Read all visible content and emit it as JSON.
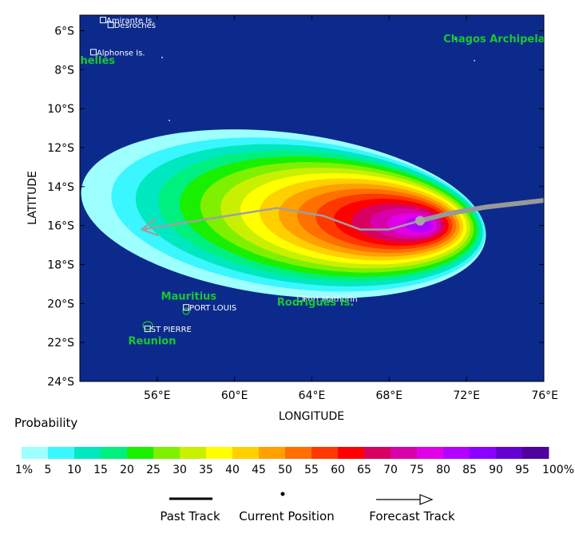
{
  "map": {
    "xlabel": "LONGITUDE",
    "ylabel": "LATITUDE",
    "lon_range": [
      52,
      76
    ],
    "lat_range": [
      -24,
      -5.2
    ],
    "x_ticks": [
      {
        "lon": 56,
        "label": "56°E"
      },
      {
        "lon": 60,
        "label": "60°E"
      },
      {
        "lon": 64,
        "label": "64°E"
      },
      {
        "lon": 68,
        "label": "68°E"
      },
      {
        "lon": 72,
        "label": "72°E"
      },
      {
        "lon": 76,
        "label": "76°E"
      }
    ],
    "y_ticks": [
      {
        "lat": -6,
        "label": "6°S"
      },
      {
        "lat": -8,
        "label": "8°S"
      },
      {
        "lat": -10,
        "label": "10°S"
      },
      {
        "lat": -12,
        "label": "12°S"
      },
      {
        "lat": -14,
        "label": "14°S"
      },
      {
        "lat": -16,
        "label": "16°S"
      },
      {
        "lat": -18,
        "label": "18°S"
      },
      {
        "lat": -20,
        "label": "20°S"
      },
      {
        "lat": -22,
        "label": "22°S"
      },
      {
        "lat": -24,
        "label": "24°S"
      }
    ],
    "ocean_color": "#0c2a8c",
    "island_labels": [
      {
        "text": "Amirante Is.",
        "lon": 53.2,
        "lat": -5.45
      },
      {
        "text": "Desroches",
        "lon": 53.6,
        "lat": -5.7
      },
      {
        "text": "Alphonse Is.",
        "lon": 52.7,
        "lat": -7.1
      },
      {
        "text": "PORT LOUIS",
        "lon": 57.5,
        "lat": -20.2
      },
      {
        "text": "Port Mathurin",
        "lon": 63.4,
        "lat": -19.75
      },
      {
        "text": "ST PIERRE",
        "lon": 55.5,
        "lat": -21.3
      }
    ],
    "region_labels": [
      {
        "text": "Chagos Archipelago",
        "lon": 70.8,
        "lat": -6.6
      },
      {
        "text": "Seychelles",
        "lon": 52.2,
        "lat": -7.7
      },
      {
        "text": "Mauritius",
        "lon": 56.2,
        "lat": -19.8
      },
      {
        "text": "Rodrigues Is.",
        "lon": 62.2,
        "lat": -20.1
      },
      {
        "text": "Reunion",
        "lon": 54.5,
        "lat": -22.1
      }
    ],
    "past_track": [
      [
        76.5,
        -14.65
      ],
      [
        73,
        -15.05
      ],
      [
        71,
        -15.4
      ],
      [
        69.6,
        -15.75
      ]
    ],
    "current_position": [
      69.6,
      -15.75
    ],
    "forecast_track": [
      [
        69.6,
        -15.75
      ],
      [
        68,
        -16.2
      ],
      [
        66.5,
        -16.2
      ],
      [
        64.6,
        -15.5
      ],
      [
        62.2,
        -15.1
      ],
      [
        55.2,
        -16.2
      ]
    ],
    "probability_field": {
      "center": [
        62.6,
        -15.9
      ],
      "contours": [
        {
          "pct": 1,
          "color": "#9effff"
        },
        {
          "pct": 5,
          "color": "#3af6ff"
        },
        {
          "pct": 10,
          "color": "#00e8c0"
        },
        {
          "pct": 15,
          "color": "#00f080"
        },
        {
          "pct": 20,
          "color": "#19f000"
        },
        {
          "pct": 25,
          "color": "#7ef000"
        },
        {
          "pct": 30,
          "color": "#c8f000"
        },
        {
          "pct": 35,
          "color": "#ffff00"
        },
        {
          "pct": 40,
          "color": "#ffd000"
        },
        {
          "pct": 45,
          "color": "#ffa000"
        },
        {
          "pct": 50,
          "color": "#ff7000"
        },
        {
          "pct": 55,
          "color": "#ff3800"
        },
        {
          "pct": 60,
          "color": "#ff0000"
        },
        {
          "pct": 65,
          "color": "#d80060"
        },
        {
          "pct": 70,
          "color": "#d800a8"
        },
        {
          "pct": 75,
          "color": "#e000e8"
        },
        {
          "pct": 80,
          "color": "#b400ff"
        }
      ]
    }
  },
  "legend": {
    "title": "Probability",
    "colors": [
      "#9effff",
      "#3af6ff",
      "#00e8c0",
      "#00f080",
      "#19f000",
      "#7ef000",
      "#c8f000",
      "#ffff00",
      "#ffd000",
      "#ffa000",
      "#ff7000",
      "#ff3800",
      "#ff0000",
      "#d80060",
      "#d800a8",
      "#e000e8",
      "#b400ff",
      "#8c00ff",
      "#6400d0",
      "#50009c"
    ],
    "labels": [
      "1%",
      "5",
      "10",
      "15",
      "20",
      "25",
      "30",
      "35",
      "40",
      "45",
      "50",
      "55",
      "60",
      "65",
      "70",
      "75",
      "80",
      "85",
      "90",
      "95",
      "100%"
    ],
    "track_items": {
      "past": "Past Track",
      "current": "Current Position",
      "forecast": "Forecast Track"
    }
  }
}
